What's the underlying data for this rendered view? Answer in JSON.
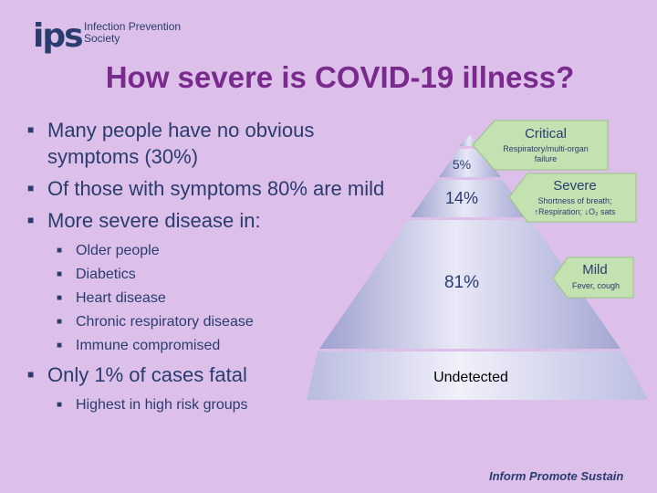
{
  "logo": {
    "mark": "ips",
    "line1": "Infection Prevention",
    "line2": "Society"
  },
  "title": "How severe is COVID-19 illness?",
  "bullets": [
    "Many people have no obvious symptoms (30%)",
    "Of those with symptoms 80% are mild",
    "More severe disease in:"
  ],
  "sub_bullets": [
    "Older people",
    "Diabetics",
    "Heart disease",
    "Chronic respiratory disease",
    "Immune compromised"
  ],
  "bullet_last": "Only 1% of cases fatal",
  "sub_bullet_last": "Highest in high risk groups",
  "pyramid": {
    "tiers": [
      {
        "value": "5%",
        "callout_title": "Critical",
        "callout_desc": "Respiratory/multi-organ failure"
      },
      {
        "value": "14%",
        "callout_title": "Severe",
        "callout_desc": "Shortness of breath; ↑Respiration; ↓O₂ sats"
      },
      {
        "value": "81%",
        "callout_title": "Mild",
        "callout_desc": "Fever, cough"
      }
    ],
    "base_label": "Undetected"
  },
  "footer": "Inform Promote Sustain",
  "colors": {
    "background": "#dcc0ea",
    "title": "#7a2a8c",
    "text": "#2a3c6e",
    "callout_fill": "#c3e1b1"
  }
}
